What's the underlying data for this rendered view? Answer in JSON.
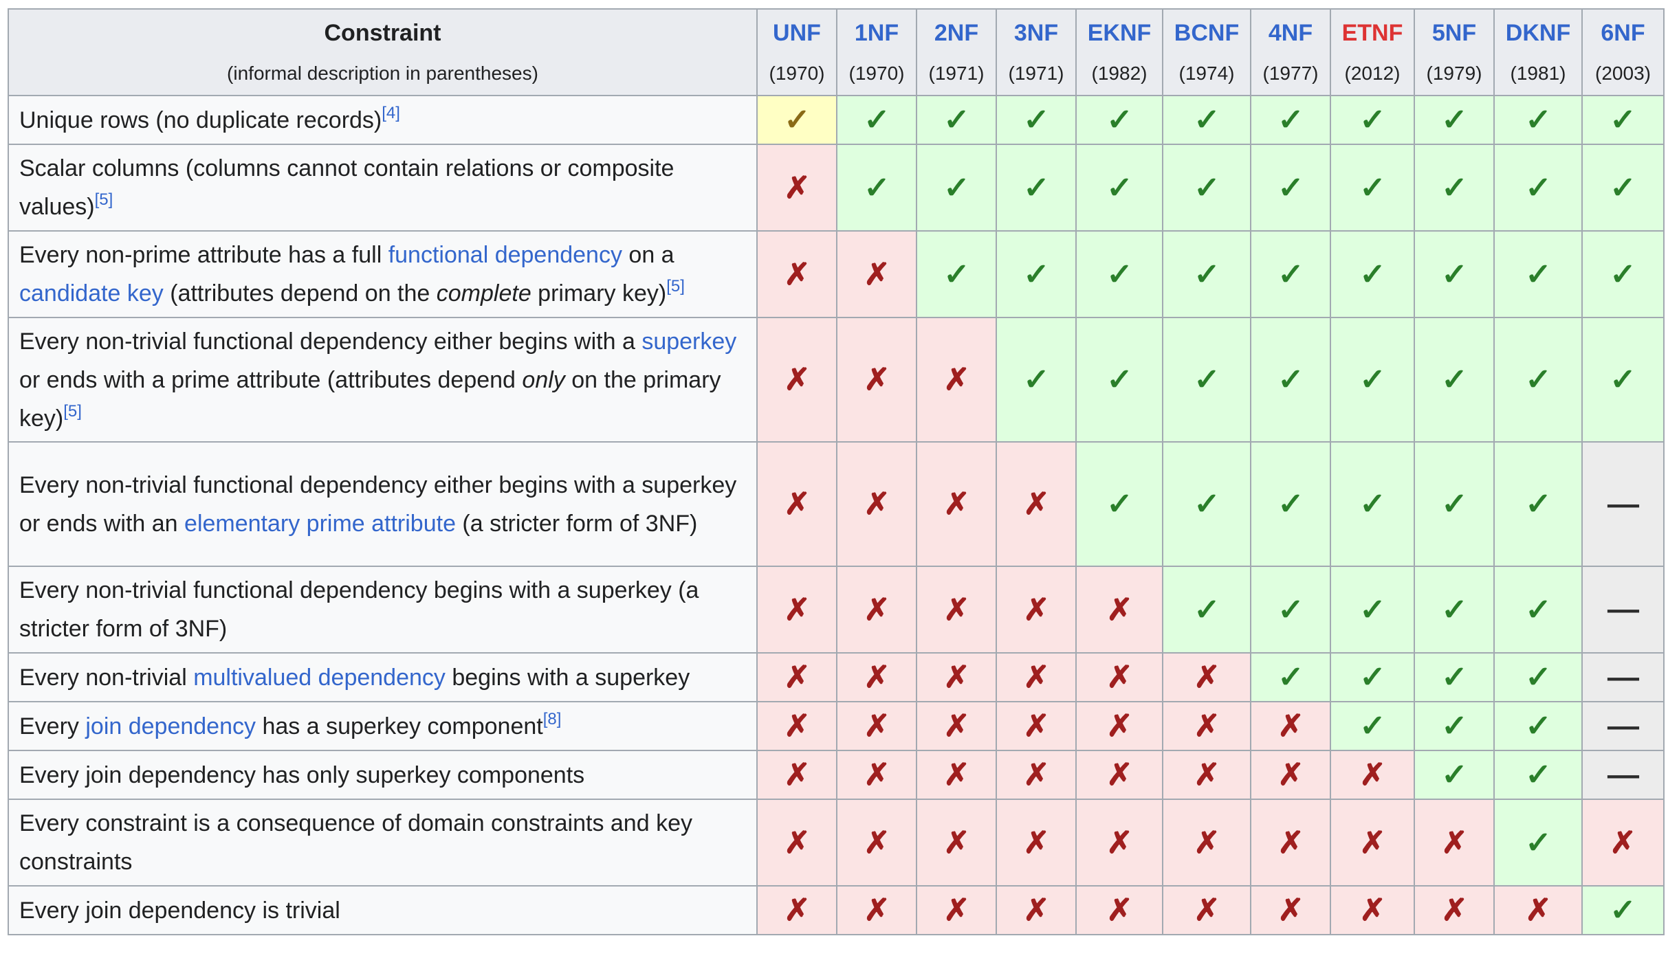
{
  "header": {
    "constraint_title": "Constraint",
    "constraint_subtitle": "(informal description in parentheses)",
    "forms": [
      {
        "name": "UNF",
        "year": "(1970)",
        "color": "#3366cc"
      },
      {
        "name": "1NF",
        "year": "(1970)",
        "color": "#3366cc"
      },
      {
        "name": "2NF",
        "year": "(1971)",
        "color": "#3366cc"
      },
      {
        "name": "3NF",
        "year": "(1971)",
        "color": "#3366cc"
      },
      {
        "name": "EKNF",
        "year": "(1982)",
        "color": "#3366cc"
      },
      {
        "name": "BCNF",
        "year": "(1974)",
        "color": "#3366cc"
      },
      {
        "name": "4NF",
        "year": "(1977)",
        "color": "#3366cc"
      },
      {
        "name": "ETNF",
        "year": "(2012)",
        "color": "#dd3333"
      },
      {
        "name": "5NF",
        "year": "(1979)",
        "color": "#3366cc"
      },
      {
        "name": "DKNF",
        "year": "(1981)",
        "color": "#3366cc"
      },
      {
        "name": "6NF",
        "year": "(2003)",
        "color": "#3366cc"
      }
    ]
  },
  "symbols": {
    "yes": "✓",
    "no": "✗",
    "partial": "✓",
    "na": "—"
  },
  "colors": {
    "yes_bg": "#dfffdf",
    "no_bg": "#fbe4e4",
    "partial_bg": "#ffffc4",
    "na_bg": "#ececec",
    "link": "#3366cc",
    "header_bg": "#eaecf0",
    "border": "#a2a9b1"
  },
  "rows": [
    {
      "parts": [
        {
          "t": "Unique rows (no duplicate records)"
        },
        {
          "ref": "[4]"
        }
      ],
      "cells": [
        "partial",
        "yes",
        "yes",
        "yes",
        "yes",
        "yes",
        "yes",
        "yes",
        "yes",
        "yes",
        "yes"
      ]
    },
    {
      "parts": [
        {
          "t": "Scalar columns (columns cannot contain relations or composite values)"
        },
        {
          "ref": "[5]"
        }
      ],
      "cells": [
        "no",
        "yes",
        "yes",
        "yes",
        "yes",
        "yes",
        "yes",
        "yes",
        "yes",
        "yes",
        "yes"
      ]
    },
    {
      "parts": [
        {
          "t": "Every non-prime attribute has a full "
        },
        {
          "link": "functional dependency"
        },
        {
          "t": " on a "
        },
        {
          "link": "candidate key"
        },
        {
          "t": " (attributes depend on the "
        },
        {
          "em": "complete"
        },
        {
          "t": " primary key)"
        },
        {
          "ref": "[5]"
        }
      ],
      "cells": [
        "no",
        "no",
        "yes",
        "yes",
        "yes",
        "yes",
        "yes",
        "yes",
        "yes",
        "yes",
        "yes"
      ]
    },
    {
      "parts": [
        {
          "t": "Every non-trivial functional dependency either begins with a "
        },
        {
          "link": "superkey"
        },
        {
          "t": " or ends with a prime attribute (attributes depend "
        },
        {
          "em": "only"
        },
        {
          "t": " on the primary key)"
        },
        {
          "ref": "[5]"
        }
      ],
      "cells": [
        "no",
        "no",
        "no",
        "yes",
        "yes",
        "yes",
        "yes",
        "yes",
        "yes",
        "yes",
        "yes"
      ]
    },
    {
      "parts": [
        {
          "t": "Every non-trivial functional dependency either begins with a superkey or ends with an "
        },
        {
          "link": "elementary prime attribute"
        },
        {
          "t": " (a stricter form of 3NF)"
        }
      ],
      "cells": [
        "no",
        "no",
        "no",
        "no",
        "yes",
        "yes",
        "yes",
        "yes",
        "yes",
        "yes",
        "na"
      ]
    },
    {
      "parts": [
        {
          "t": "Every non-trivial functional dependency begins with a superkey (a stricter form of 3NF)"
        }
      ],
      "cells": [
        "no",
        "no",
        "no",
        "no",
        "no",
        "yes",
        "yes",
        "yes",
        "yes",
        "yes",
        "na"
      ]
    },
    {
      "parts": [
        {
          "t": "Every non-trivial "
        },
        {
          "link": "multivalued dependency"
        },
        {
          "t": " begins with a superkey"
        }
      ],
      "cells": [
        "no",
        "no",
        "no",
        "no",
        "no",
        "no",
        "yes",
        "yes",
        "yes",
        "yes",
        "na"
      ]
    },
    {
      "parts": [
        {
          "t": "Every "
        },
        {
          "link": "join dependency"
        },
        {
          "t": " has a superkey component"
        },
        {
          "ref": "[8]"
        }
      ],
      "cells": [
        "no",
        "no",
        "no",
        "no",
        "no",
        "no",
        "no",
        "yes",
        "yes",
        "yes",
        "na"
      ]
    },
    {
      "parts": [
        {
          "t": "Every join dependency has only superkey components"
        }
      ],
      "cells": [
        "no",
        "no",
        "no",
        "no",
        "no",
        "no",
        "no",
        "no",
        "yes",
        "yes",
        "na"
      ]
    },
    {
      "parts": [
        {
          "t": "Every constraint is a consequence of domain constraints and key constraints"
        }
      ],
      "cells": [
        "no",
        "no",
        "no",
        "no",
        "no",
        "no",
        "no",
        "no",
        "no",
        "yes",
        "no"
      ]
    },
    {
      "parts": [
        {
          "t": "Every join dependency is trivial"
        }
      ],
      "cells": [
        "no",
        "no",
        "no",
        "no",
        "no",
        "no",
        "no",
        "no",
        "no",
        "no",
        "yes"
      ]
    }
  ]
}
